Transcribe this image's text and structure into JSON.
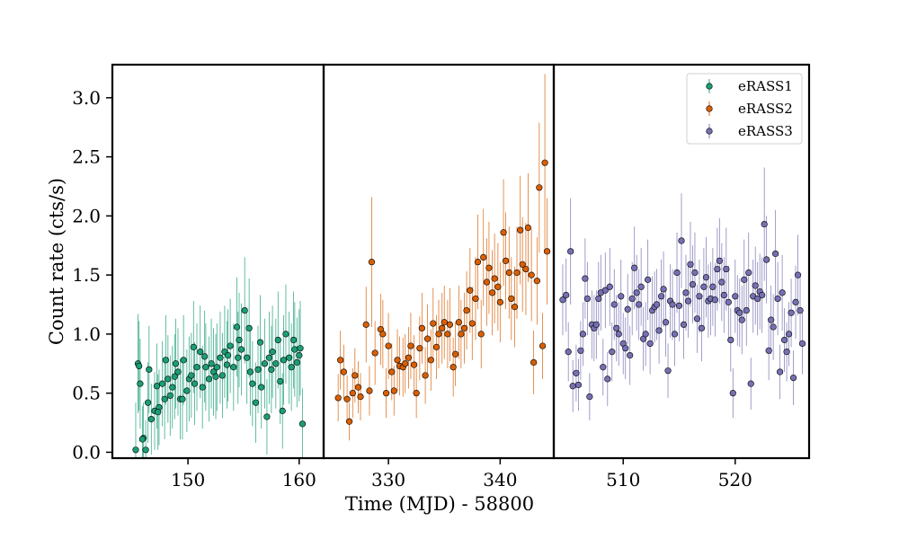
{
  "chart_data": {
    "type": "scatter",
    "xlabel": "Time (MJD) - 58800",
    "ylabel": "Count rate (cts/s)",
    "ylim": [
      -0.05,
      3.28
    ],
    "yticks": [
      0.0,
      0.5,
      1.0,
      1.5,
      2.0,
      2.5,
      3.0
    ],
    "ytick_labels": [
      "0.0",
      "0.5",
      "1.0",
      "1.5",
      "2.0",
      "2.5",
      "3.0"
    ],
    "legend_position": "top-right",
    "panels": [
      {
        "xlim": [
          143.2,
          162.2
        ],
        "xticks": [
          150,
          160
        ],
        "xtick_labels": [
          "150",
          "160"
        ]
      },
      {
        "xlim": [
          324.2,
          344.8
        ],
        "xticks": [
          330,
          340
        ],
        "xtick_labels": [
          "330",
          "340"
        ]
      },
      {
        "xlim": [
          503.8,
          526.6
        ],
        "xticks": [
          510,
          520
        ],
        "xtick_labels": [
          "510",
          "520"
        ]
      }
    ],
    "series": [
      {
        "name": "eRASS1",
        "panel": 0,
        "color": "#1b9e77",
        "x": [
          145.3,
          145.5,
          145.7,
          146.0,
          146.2,
          146.4,
          146.7,
          147.0,
          147.2,
          147.4,
          147.7,
          147.9,
          148.2,
          148.4,
          148.6,
          148.9,
          149.1,
          149.3,
          149.6,
          149.9,
          150.1,
          150.3,
          150.6,
          150.8,
          151.1,
          151.3,
          151.6,
          151.9,
          152.1,
          152.3,
          152.6,
          152.9,
          153.1,
          153.3,
          153.6,
          153.8,
          154.1,
          154.4,
          154.6,
          154.8,
          155.1,
          155.3,
          155.6,
          155.8,
          156.1,
          156.3,
          156.6,
          156.9,
          157.1,
          157.3,
          157.6,
          157.9,
          158.1,
          158.3,
          158.6,
          158.8,
          159.1,
          159.3,
          159.6,
          159.8,
          160.1,
          160.3,
          145.6,
          145.9,
          146.5,
          147.3,
          148.0,
          148.8,
          149.5,
          150.5,
          151.5,
          152.5,
          153.5,
          154.5,
          155.5,
          156.5,
          157.5,
          158.5,
          159.5,
          160.0
        ],
        "y": [
          0.02,
          0.75,
          0.58,
          0.12,
          0.02,
          0.42,
          0.28,
          0.35,
          0.56,
          0.38,
          0.58,
          0.45,
          0.62,
          0.48,
          0.55,
          0.75,
          0.68,
          0.45,
          0.78,
          0.52,
          0.62,
          0.65,
          0.58,
          0.72,
          0.85,
          0.55,
          0.72,
          0.62,
          0.75,
          0.68,
          0.72,
          0.8,
          0.65,
          0.85,
          0.82,
          0.9,
          0.72,
          1.06,
          0.95,
          0.87,
          1.2,
          0.8,
          0.68,
          0.58,
          0.42,
          0.7,
          0.55,
          0.75,
          0.3,
          0.8,
          0.85,
          0.75,
          0.95,
          0.6,
          0.78,
          1.0,
          0.8,
          0.72,
          0.87,
          0.76,
          0.88,
          0.24,
          0.73,
          0.11,
          0.7,
          0.34,
          0.78,
          0.64,
          0.45,
          0.89,
          0.81,
          0.64,
          0.74,
          0.8,
          1.05,
          0.93,
          0.7,
          0.35,
          0.95,
          0.82
        ],
        "err": [
          0.4,
          0.42,
          0.38,
          0.3,
          0.25,
          0.34,
          0.3,
          0.33,
          0.36,
          0.32,
          0.36,
          0.34,
          0.37,
          0.34,
          0.35,
          0.38,
          0.37,
          0.34,
          0.38,
          0.35,
          0.36,
          0.36,
          0.35,
          0.37,
          0.39,
          0.35,
          0.37,
          0.36,
          0.38,
          0.37,
          0.37,
          0.39,
          0.36,
          0.39,
          0.39,
          0.4,
          0.37,
          0.42,
          0.4,
          0.39,
          0.45,
          0.39,
          0.37,
          0.36,
          0.34,
          0.37,
          0.35,
          0.38,
          0.32,
          0.39,
          0.39,
          0.38,
          0.41,
          0.36,
          0.38,
          0.42,
          0.39,
          0.37,
          0.4,
          0.38,
          0.4,
          0.3,
          0.38,
          0.28,
          0.37,
          0.32,
          0.38,
          0.36,
          0.34,
          0.39,
          0.39,
          0.36,
          0.37,
          0.39,
          0.42,
          0.4,
          0.37,
          0.32,
          0.41,
          0.39
        ]
      },
      {
        "name": "eRASS2",
        "panel": 1,
        "color": "#d95f02",
        "x": [
          325.5,
          325.7,
          326.0,
          326.3,
          326.5,
          326.8,
          327.0,
          327.3,
          327.5,
          328.0,
          328.3,
          328.5,
          328.8,
          329.3,
          329.5,
          329.8,
          330.0,
          330.3,
          330.5,
          330.8,
          331.0,
          331.3,
          331.5,
          331.8,
          332.0,
          332.3,
          332.5,
          332.8,
          333.0,
          333.3,
          333.5,
          333.8,
          334.0,
          334.3,
          334.5,
          334.8,
          335.0,
          335.3,
          335.5,
          335.8,
          336.0,
          336.3,
          336.5,
          336.8,
          337.0,
          337.3,
          337.5,
          337.8,
          338.0,
          338.3,
          338.5,
          338.8,
          339.0,
          339.3,
          339.5,
          339.8,
          340.0,
          340.3,
          340.5,
          340.8,
          341.0,
          341.3,
          341.5,
          341.8,
          342.0,
          342.3,
          342.5,
          342.8,
          343.0,
          343.3,
          343.5,
          343.8,
          344.0,
          344.2
        ],
        "y": [
          0.46,
          0.78,
          0.68,
          0.45,
          0.26,
          0.5,
          0.65,
          0.55,
          0.47,
          1.08,
          0.52,
          1.61,
          0.84,
          1.04,
          1.0,
          0.5,
          0.9,
          0.68,
          0.52,
          0.78,
          0.73,
          0.72,
          0.75,
          0.8,
          0.9,
          0.74,
          0.5,
          0.88,
          1.05,
          0.65,
          0.96,
          0.78,
          1.09,
          0.89,
          1.0,
          1.05,
          1.1,
          1.0,
          1.08,
          0.72,
          0.83,
          1.1,
          1.0,
          1.05,
          1.2,
          1.37,
          1.09,
          1.3,
          1.61,
          1.0,
          1.65,
          1.44,
          1.56,
          1.35,
          1.47,
          1.4,
          1.27,
          1.86,
          1.62,
          1.52,
          1.3,
          1.23,
          1.52,
          1.88,
          1.59,
          1.55,
          1.9,
          1.5,
          0.76,
          1.45,
          2.24,
          0.9,
          2.45,
          1.7
        ],
        "err": [
          0.2,
          0.25,
          0.23,
          0.2,
          0.16,
          0.21,
          0.23,
          0.22,
          0.2,
          0.32,
          0.21,
          0.55,
          0.27,
          0.3,
          0.29,
          0.21,
          0.28,
          0.24,
          0.21,
          0.26,
          0.25,
          0.25,
          0.25,
          0.26,
          0.28,
          0.25,
          0.21,
          0.27,
          0.3,
          0.24,
          0.29,
          0.26,
          0.3,
          0.27,
          0.29,
          0.3,
          0.31,
          0.29,
          0.31,
          0.25,
          0.27,
          0.31,
          0.29,
          0.3,
          0.33,
          0.36,
          0.31,
          0.35,
          0.4,
          0.29,
          0.41,
          0.37,
          0.39,
          0.36,
          0.38,
          0.37,
          0.34,
          0.45,
          0.41,
          0.39,
          0.35,
          0.34,
          0.39,
          0.46,
          0.4,
          0.39,
          0.46,
          0.39,
          0.27,
          0.37,
          0.55,
          0.28,
          0.75,
          0.45
        ]
      },
      {
        "name": "eRASS3",
        "panel": 2,
        "color": "#7570b3",
        "x": [
          504.6,
          504.9,
          505.1,
          505.3,
          505.5,
          505.8,
          506.0,
          506.2,
          506.4,
          506.6,
          506.8,
          507.0,
          507.2,
          507.4,
          507.6,
          507.8,
          508.0,
          508.2,
          508.4,
          508.6,
          508.8,
          509.0,
          509.2,
          509.4,
          509.6,
          509.8,
          510.0,
          510.2,
          510.4,
          510.6,
          510.8,
          511.0,
          511.2,
          511.4,
          511.6,
          511.8,
          512.0,
          512.2,
          512.4,
          512.6,
          512.8,
          513.0,
          513.2,
          513.4,
          513.6,
          513.8,
          514.0,
          514.2,
          514.4,
          514.6,
          514.8,
          515.0,
          515.2,
          515.4,
          515.6,
          515.8,
          516.0,
          516.2,
          516.4,
          516.6,
          516.8,
          517.0,
          517.2,
          517.4,
          517.6,
          517.8,
          518.0,
          518.2,
          518.4,
          518.6,
          518.8,
          519.0,
          519.2,
          519.4,
          519.6,
          519.8,
          520.0,
          520.2,
          520.4,
          520.6,
          520.8,
          521.0,
          521.2,
          521.4,
          521.6,
          521.8,
          522.0,
          522.2,
          522.4,
          522.6,
          522.8,
          523.0,
          523.2,
          523.4,
          523.6,
          523.8,
          524.0,
          524.2,
          524.4,
          524.6,
          524.8,
          525.0,
          525.2,
          525.4,
          525.6,
          525.8,
          526.0
        ],
        "y": [
          1.29,
          1.33,
          0.85,
          1.7,
          0.56,
          0.67,
          0.57,
          0.86,
          1.0,
          1.47,
          1.3,
          0.47,
          1.08,
          1.05,
          1.08,
          1.3,
          1.35,
          0.72,
          1.37,
          0.62,
          1.4,
          0.85,
          1.25,
          1.05,
          1.0,
          1.32,
          0.92,
          0.88,
          1.21,
          0.82,
          1.3,
          1.56,
          1.35,
          1.25,
          1.4,
          0.96,
          1.0,
          1.46,
          0.92,
          1.2,
          1.23,
          1.25,
          1.03,
          1.32,
          1.38,
          1.1,
          0.69,
          1.28,
          1.25,
          1.0,
          1.52,
          1.24,
          1.79,
          1.08,
          1.35,
          1.28,
          1.59,
          1.42,
          1.52,
          1.13,
          1.32,
          1.05,
          1.4,
          1.48,
          1.28,
          1.3,
          1.4,
          1.29,
          1.55,
          1.62,
          1.44,
          1.33,
          1.55,
          1.27,
          0.95,
          0.5,
          1.32,
          1.2,
          1.18,
          1.12,
          1.46,
          1.2,
          1.52,
          0.58,
          1.32,
          1.41,
          1.3,
          1.36,
          1.33,
          1.93,
          1.63,
          0.86,
          1.12,
          1.06,
          1.68,
          1.3,
          0.68,
          1.35,
          0.95,
          0.85,
          1.0,
          1.18,
          0.63,
          1.27,
          1.5,
          1.2,
          0.92
        ],
        "err": [
          0.3,
          0.31,
          0.25,
          0.45,
          0.22,
          0.24,
          0.22,
          0.25,
          0.27,
          0.34,
          0.31,
          0.2,
          0.29,
          0.28,
          0.29,
          0.31,
          0.32,
          0.24,
          0.32,
          0.23,
          0.33,
          0.25,
          0.3,
          0.28,
          0.27,
          0.31,
          0.26,
          0.26,
          0.3,
          0.25,
          0.31,
          0.35,
          0.32,
          0.3,
          0.33,
          0.27,
          0.27,
          0.34,
          0.26,
          0.29,
          0.3,
          0.3,
          0.28,
          0.31,
          0.32,
          0.29,
          0.23,
          0.31,
          0.3,
          0.27,
          0.34,
          0.3,
          0.4,
          0.29,
          0.32,
          0.31,
          0.36,
          0.33,
          0.34,
          0.29,
          0.31,
          0.28,
          0.33,
          0.34,
          0.31,
          0.31,
          0.33,
          0.31,
          0.35,
          0.36,
          0.33,
          0.32,
          0.35,
          0.31,
          0.27,
          0.21,
          0.31,
          0.3,
          0.29,
          0.29,
          0.34,
          0.3,
          0.34,
          0.22,
          0.31,
          0.33,
          0.31,
          0.32,
          0.32,
          0.48,
          0.37,
          0.25,
          0.29,
          0.28,
          0.37,
          0.31,
          0.23,
          0.32,
          0.27,
          0.25,
          0.27,
          0.29,
          0.23,
          0.31,
          0.34,
          0.3,
          0.26
        ]
      }
    ]
  }
}
